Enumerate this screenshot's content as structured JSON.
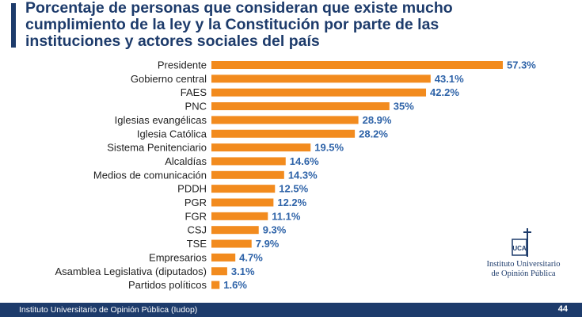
{
  "header": {
    "title_lines": [
      "Porcentaje de personas que consideran que existe mucho",
      "cumplimiento de la ley y la Constitución por parte de las",
      "instituciones y actores sociales del país"
    ]
  },
  "colors": {
    "title": "#1d3b6b",
    "accent": "#1d3b6b",
    "bar": "#f28b1e",
    "value_label": "#2e63a8",
    "footer_bg": "#1d3b6b"
  },
  "chart_data": {
    "type": "bar",
    "orientation": "horizontal",
    "categories": [
      "Presidente",
      "Gobierno central",
      "FAES",
      "PNC",
      "Iglesias evangélicas",
      "Iglesia Católica",
      "Sistema Penitenciario",
      "Alcaldías",
      "Medios de comunicación",
      "PDDH",
      "PGR",
      "FGR",
      "CSJ",
      "TSE",
      "Empresarios",
      "Asamblea Legislativa (diputados)",
      "Partidos políticos"
    ],
    "values": [
      57.3,
      43.1,
      42.2,
      35,
      28.9,
      28.2,
      19.5,
      14.6,
      14.3,
      12.5,
      12.2,
      11.1,
      9.3,
      7.9,
      4.7,
      3.1,
      1.6
    ],
    "value_labels": [
      "57.3%",
      "43.1%",
      "42.2%",
      "35%",
      "28.9%",
      "28.2%",
      "19.5%",
      "14.6%",
      "14.3%",
      "12.5%",
      "12.2%",
      "11.1%",
      "9.3%",
      "7.9%",
      "4.7%",
      "3.1%",
      "1.6%"
    ],
    "xlim": [
      0,
      57.3
    ],
    "grid": false,
    "legend": "none"
  },
  "logo": {
    "mark_text": "UCA",
    "line1": "Instituto Universitario",
    "line2": "de Opinión Pública"
  },
  "footer": {
    "text": "Instituto Universitario de Opinión Pública (Iudop)",
    "page_number": "44"
  }
}
